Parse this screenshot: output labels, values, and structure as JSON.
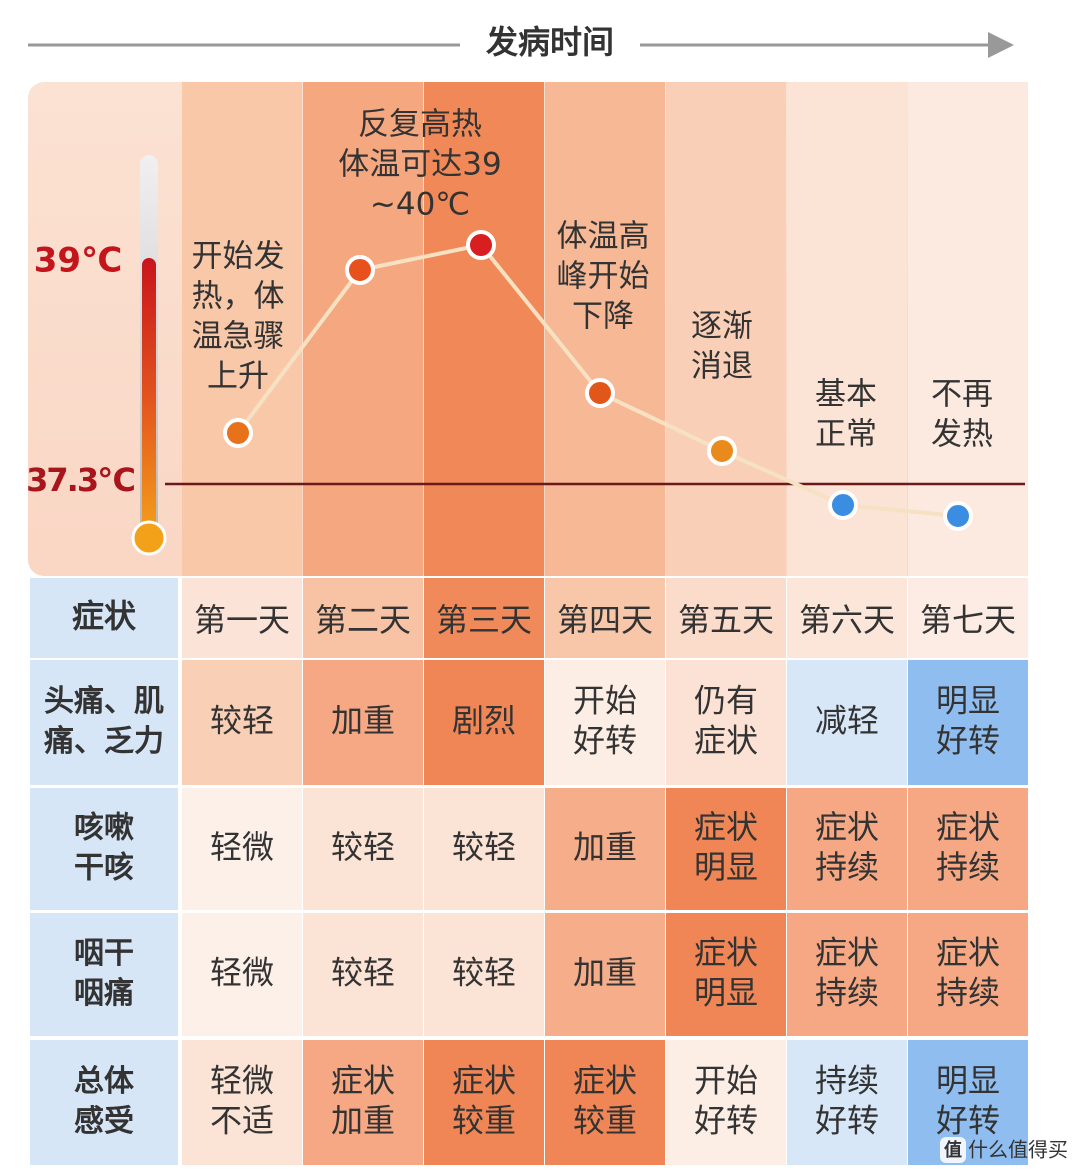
{
  "header": {
    "title": "发病时间"
  },
  "thermometer": {
    "high": "39℃",
    "baseline": "37.3℃"
  },
  "fever_notes": [
    [
      "开始发",
      "热，体",
      "温急骤",
      "上升"
    ],
    [
      "反复高热",
      "体温可达39",
      "~40℃"
    ],
    [
      "体温高",
      "峰开始",
      "下降"
    ],
    [
      "逐渐",
      "消退"
    ],
    [
      "基本",
      "正常"
    ],
    [
      "不再",
      "发热"
    ]
  ],
  "table": {
    "corner": "症状",
    "days": [
      "第一天",
      "第二天",
      "第三天",
      "第四天",
      "第五天",
      "第六天",
      "第七天"
    ],
    "rows": [
      {
        "label": [
          "头痛、肌",
          "痛、乏力"
        ],
        "cells": [
          [
            "较轻"
          ],
          [
            "加重"
          ],
          [
            "剧烈"
          ],
          [
            "开始",
            "好转"
          ],
          [
            "仍有",
            "症状"
          ],
          [
            "减轻"
          ],
          [
            "明显",
            "好转"
          ]
        ]
      },
      {
        "label": [
          "咳嗽",
          "干咳"
        ],
        "cells": [
          [
            "轻微"
          ],
          [
            "较轻"
          ],
          [
            "较轻"
          ],
          [
            "加重"
          ],
          [
            "症状",
            "明显"
          ],
          [
            "症状",
            "持续"
          ],
          [
            "症状",
            "持续"
          ]
        ]
      },
      {
        "label": [
          "咽干",
          "咽痛"
        ],
        "cells": [
          [
            "轻微"
          ],
          [
            "较轻"
          ],
          [
            "较轻"
          ],
          [
            "加重"
          ],
          [
            "症状",
            "明显"
          ],
          [
            "症状",
            "持续"
          ],
          [
            "症状",
            "持续"
          ]
        ]
      },
      {
        "label": [
          "总体",
          "感受"
        ],
        "cells": [
          [
            "轻微",
            "不适"
          ],
          [
            "症状",
            "加重"
          ],
          [
            "症状",
            "较重"
          ],
          [
            "症状",
            "较重"
          ],
          [
            "开始",
            "好转"
          ],
          [
            "持续",
            "好转"
          ],
          [
            "明显",
            "好转"
          ]
        ]
      }
    ]
  },
  "watermark": {
    "badge": "值",
    "text": "什么值得买"
  }
}
